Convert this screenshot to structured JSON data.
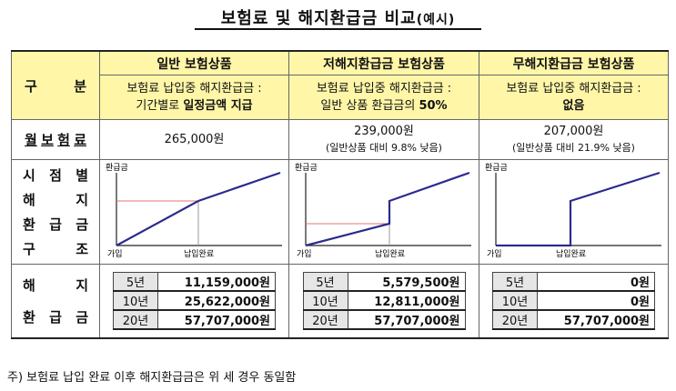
{
  "title": "보험료 및 해지환급금 비교",
  "title_sub": "(예시)",
  "row_labels": {
    "category": "구분",
    "premium": "월보험료",
    "structure": "시점별 해지 환급금 구조",
    "refund": "해지 환급금"
  },
  "columns": [
    {
      "header": "일반 보험상품",
      "desc_line1": "보험료 납입중 해지환급금 :",
      "desc_line2_normal": "기간별로 ",
      "desc_line2_bold": "일정금액 지급",
      "premium": "265,000원",
      "premium_note": "",
      "refunds": [
        {
          "year": "5년",
          "amount": "11,159,000원"
        },
        {
          "year": "10년",
          "amount": "25,622,000원"
        },
        {
          "year": "20년",
          "amount": "57,707,000원"
        }
      ]
    },
    {
      "header": "저해지환급금 보험상품",
      "desc_line1": "보험료 납입중 해지환급금 :",
      "desc_line2_normal": "일반 상품 환급금의 ",
      "desc_line2_bold": "50%",
      "premium": "239,000원",
      "premium_note": "(일반상품 대비 9.8% 낮음)",
      "refunds": [
        {
          "year": "5년",
          "amount": "5,579,500원"
        },
        {
          "year": "10년",
          "amount": "12,811,000원"
        },
        {
          "year": "20년",
          "amount": "57,707,000원"
        }
      ]
    },
    {
      "header": "무해지환급금 보험상품",
      "desc_line1": "보험료 납입중 해지환급금 :",
      "desc_line2_normal": "",
      "desc_line2_bold": "없음",
      "premium": "207,000원",
      "premium_note": "(일반상품 대비 21.9% 낮음)",
      "refunds": [
        {
          "year": "5년",
          "amount": "0원"
        },
        {
          "year": "10년",
          "amount": "0원"
        },
        {
          "year": "20년",
          "amount": "57,707,000원"
        }
      ]
    }
  ],
  "chart_labels": {
    "y_axis": "환급금",
    "origin": "가입",
    "payment_end": "납입완료"
  },
  "colors": {
    "header_bg": "#fff6a8",
    "line": "#2b2b8f",
    "guide": "#e57373",
    "year_bg": "#e6e6e6"
  },
  "footnote": "주) 보험료 납입 완료 이후 해지환급금은 위 세 경우 동일함"
}
